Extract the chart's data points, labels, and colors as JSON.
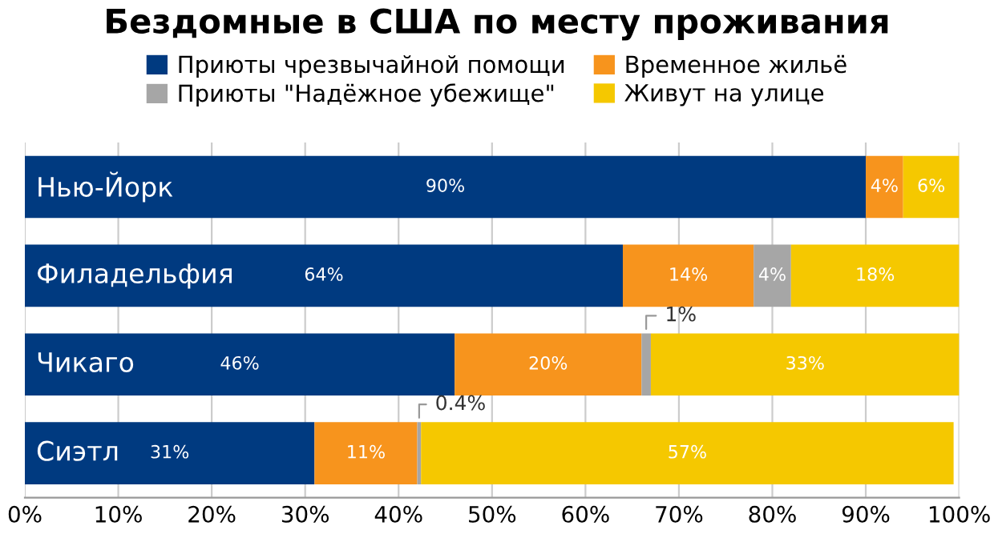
{
  "chart_data": {
    "type": "bar",
    "orientation": "horizontal",
    "stacked": true,
    "title": "Бездомные в США по месту проживания",
    "categories": [
      "Нью-Йорк",
      "Филадельфия",
      "Чикаго",
      "Сиэтл"
    ],
    "series": [
      {
        "name": "Приюты чрезвычайной помощи",
        "color": "#003a80",
        "values": [
          90,
          64,
          46,
          31
        ],
        "value_labels": [
          "90%",
          "64%",
          "46%",
          "31%"
        ]
      },
      {
        "name": "Временное жильё",
        "color": "#f7941d",
        "values": [
          4,
          14,
          20,
          11
        ],
        "value_labels": [
          "4%",
          "14%",
          "20%",
          "11%"
        ]
      },
      {
        "name": "Приюты \"Надёжное убежище\"",
        "color": "#a6a6a6",
        "values": [
          null,
          4,
          1,
          0.4
        ],
        "value_labels": [
          null,
          "4%",
          "1%",
          "0.4%"
        ]
      },
      {
        "name": "Живут на улице",
        "color": "#f5c800",
        "values": [
          6,
          18,
          33,
          57
        ],
        "value_labels": [
          "6%",
          "18%",
          "33%",
          "57%"
        ]
      }
    ],
    "xlim": [
      0,
      100
    ],
    "xticks": [
      {
        "value": 0,
        "label": "0%"
      },
      {
        "value": 10,
        "label": "10%"
      },
      {
        "value": 20,
        "label": "20%"
      },
      {
        "value": 30,
        "label": "30%"
      },
      {
        "value": 40,
        "label": "40%"
      },
      {
        "value": 50,
        "label": "50%"
      },
      {
        "value": 60,
        "label": "60%"
      },
      {
        "value": 70,
        "label": "70%"
      },
      {
        "value": 80,
        "label": "80%"
      },
      {
        "value": 90,
        "label": "90%"
      },
      {
        "value": 100,
        "label": "100%"
      }
    ],
    "grid": "x",
    "legend": "top",
    "tick_labels": "x"
  }
}
